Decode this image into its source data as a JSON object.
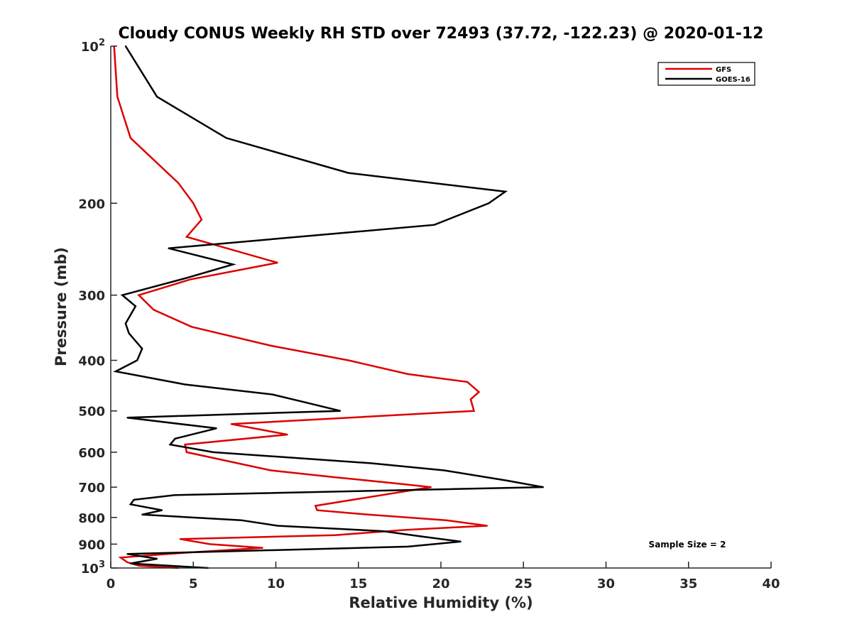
{
  "chart_data": {
    "type": "line",
    "title": "Cloudy CONUS Weekly RH STD over 72493 (37.72, -122.23) @ 2020-01-12",
    "xlabel": "Relative Humidity (%)",
    "ylabel": "Pressure (mb)",
    "xlim": [
      0,
      40
    ],
    "ylim": [
      100,
      1000
    ],
    "yscale": "log",
    "y_reversed": true,
    "grid": false,
    "legend_position": "top-right",
    "x_ticks": [
      "0",
      "5",
      "10",
      "15",
      "20",
      "25",
      "30",
      "35",
      "40"
    ],
    "y_ticks": [
      {
        "value": 100,
        "base": "10",
        "exp": "2"
      },
      {
        "value": 200,
        "label": "200"
      },
      {
        "value": 300,
        "label": "300"
      },
      {
        "value": 400,
        "label": "400"
      },
      {
        "value": 500,
        "label": "500"
      },
      {
        "value": 600,
        "label": "600"
      },
      {
        "value": 700,
        "label": "700"
      },
      {
        "value": 800,
        "label": "800"
      },
      {
        "value": 900,
        "label": "900"
      },
      {
        "value": 1000,
        "base": "10",
        "exp": "3"
      }
    ],
    "series": [
      {
        "name": "GFS",
        "color": "#dd0000",
        "points": [
          [
            0.2,
            100
          ],
          [
            0.4,
            125
          ],
          [
            1.2,
            150
          ],
          [
            4.1,
            183
          ],
          [
            5.0,
            200
          ],
          [
            5.5,
            215
          ],
          [
            4.6,
            232
          ],
          [
            10.1,
            260
          ],
          [
            4.8,
            280
          ],
          [
            1.7,
            300
          ],
          [
            2.6,
            320
          ],
          [
            4.9,
            345
          ],
          [
            9.7,
            375
          ],
          [
            14.4,
            400
          ],
          [
            18.0,
            425
          ],
          [
            21.6,
            440
          ],
          [
            22.3,
            460
          ],
          [
            21.8,
            475
          ],
          [
            22.0,
            500
          ],
          [
            7.3,
            530
          ],
          [
            10.7,
            555
          ],
          [
            4.5,
            580
          ],
          [
            4.6,
            600
          ],
          [
            7.7,
            630
          ],
          [
            9.7,
            650
          ],
          [
            13.6,
            670
          ],
          [
            17.6,
            690
          ],
          [
            19.4,
            700
          ],
          [
            12.4,
            760
          ],
          [
            12.5,
            775
          ],
          [
            15.6,
            790
          ],
          [
            20.3,
            810
          ],
          [
            22.8,
            830
          ],
          [
            17.9,
            845
          ],
          [
            13.6,
            865
          ],
          [
            4.2,
            880
          ],
          [
            6.0,
            900
          ],
          [
            9.2,
            915
          ],
          [
            4.5,
            935
          ],
          [
            0.6,
            955
          ],
          [
            1.0,
            975
          ],
          [
            1.7,
            990
          ],
          [
            4.1,
            1000
          ]
        ]
      },
      {
        "name": "GOES-16",
        "color": "#000000",
        "points": [
          [
            0.9,
            100
          ],
          [
            2.8,
            125
          ],
          [
            7.0,
            150
          ],
          [
            14.4,
            175
          ],
          [
            23.9,
            190
          ],
          [
            22.9,
            200
          ],
          [
            19.6,
            220
          ],
          [
            3.5,
            244
          ],
          [
            7.4,
            262
          ],
          [
            4.6,
            278
          ],
          [
            0.7,
            300
          ],
          [
            1.5,
            315
          ],
          [
            0.9,
            340
          ],
          [
            1.1,
            355
          ],
          [
            1.9,
            380
          ],
          [
            1.6,
            400
          ],
          [
            0.3,
            420
          ],
          [
            4.5,
            445
          ],
          [
            9.8,
            465
          ],
          [
            11.6,
            480
          ],
          [
            13.9,
            500
          ],
          [
            1.0,
            515
          ],
          [
            6.4,
            540
          ],
          [
            3.9,
            565
          ],
          [
            3.6,
            580
          ],
          [
            6.2,
            600
          ],
          [
            15.8,
            630
          ],
          [
            20.2,
            650
          ],
          [
            24.0,
            680
          ],
          [
            26.2,
            700
          ],
          [
            3.9,
            725
          ],
          [
            1.4,
            740
          ],
          [
            1.2,
            755
          ],
          [
            3.1,
            775
          ],
          [
            1.9,
            790
          ],
          [
            7.9,
            810
          ],
          [
            10.1,
            830
          ],
          [
            16.5,
            850
          ],
          [
            18.8,
            870
          ],
          [
            21.2,
            890
          ],
          [
            18.0,
            910
          ],
          [
            1.0,
            940
          ],
          [
            2.8,
            960
          ],
          [
            1.2,
            980
          ],
          [
            5.9,
            1000
          ]
        ]
      }
    ],
    "annotations": [
      "Sample Size = 2"
    ]
  }
}
